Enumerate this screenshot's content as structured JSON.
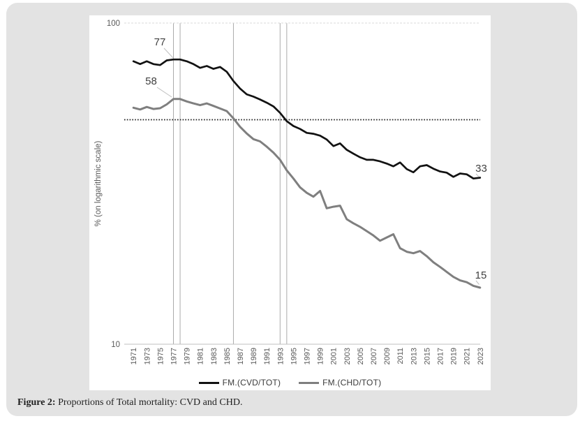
{
  "caption": {
    "label": "Figure 2:",
    "text": " Proportions of Total mortality: CVD and CHD."
  },
  "chart_data": {
    "type": "line",
    "title": "",
    "xlabel": "",
    "ylabel": "% (on logarithmic scale)",
    "y_scale": "logarithmic",
    "ylim": [
      10,
      100
    ],
    "y_tick_labels": [
      "100",
      "10"
    ],
    "year_start": 1971,
    "year_end": 2023,
    "x_tick_labels": [
      "1971",
      "1973",
      "1975",
      "1977",
      "1979",
      "1981",
      "1983",
      "1985",
      "1987",
      "1989",
      "1991",
      "1993",
      "1995",
      "1997",
      "1999",
      "2001",
      "2003",
      "2005",
      "2007",
      "2009",
      "2011",
      "2013",
      "2015",
      "2017",
      "2019",
      "2021",
      "2023"
    ],
    "grid": {
      "top_gridline_value": 100,
      "bottom_axis_value": 10,
      "gridlines_dashed": true
    },
    "reference": {
      "dotted_horizontal_value": 50,
      "vertical_line_years": [
        1977,
        1978,
        1986,
        1993,
        1994
      ]
    },
    "legend_position": "bottom",
    "series": [
      {
        "name": "FM.(CVD/TOT)",
        "color": "#121212",
        "values": [
          76,
          74.5,
          76,
          74.5,
          74,
          76.5,
          77,
          77,
          76,
          74.5,
          72.5,
          73.5,
          72,
          73,
          70.5,
          66,
          62.5,
          60,
          59,
          57.8,
          56.5,
          55,
          52.5,
          49.5,
          47.8,
          46.8,
          45.5,
          45.2,
          44.6,
          43.4,
          41.4,
          42.2,
          40.3,
          39.2,
          38.2,
          37.5,
          37.5,
          37.1,
          36.5,
          35.8,
          36.8,
          35.1,
          34.3,
          35.8,
          36.1,
          35.2,
          34.5,
          34.2,
          33.2,
          34,
          33.8,
          32.8,
          33
        ]
      },
      {
        "name": "FM.(CHD/TOT)",
        "color": "#7f7f7f",
        "values": [
          54.5,
          53.8,
          54.8,
          54,
          54.3,
          55.8,
          58,
          58,
          57,
          56.2,
          55.5,
          56.2,
          55.2,
          54.2,
          53.2,
          50.5,
          47.5,
          45.3,
          43.5,
          42.8,
          41.2,
          39.5,
          37.5,
          34.8,
          32.8,
          30.8,
          29.6,
          28.8,
          30,
          26.5,
          26.8,
          27,
          24.5,
          23.8,
          23.2,
          22.5,
          21.8,
          21,
          21.5,
          22,
          19.9,
          19.4,
          19.2,
          19.5,
          18.8,
          18,
          17.4,
          16.8,
          16.2,
          15.8,
          15.6,
          15.2,
          15
        ]
      }
    ],
    "annotations": [
      {
        "text": "77",
        "year": 1977,
        "series_index": 0
      },
      {
        "text": "58",
        "year": 1977,
        "series_index": 1
      },
      {
        "text": "33",
        "year": 2023,
        "series_index": 0
      },
      {
        "text": "15",
        "year": 2023,
        "series_index": 1
      }
    ]
  }
}
